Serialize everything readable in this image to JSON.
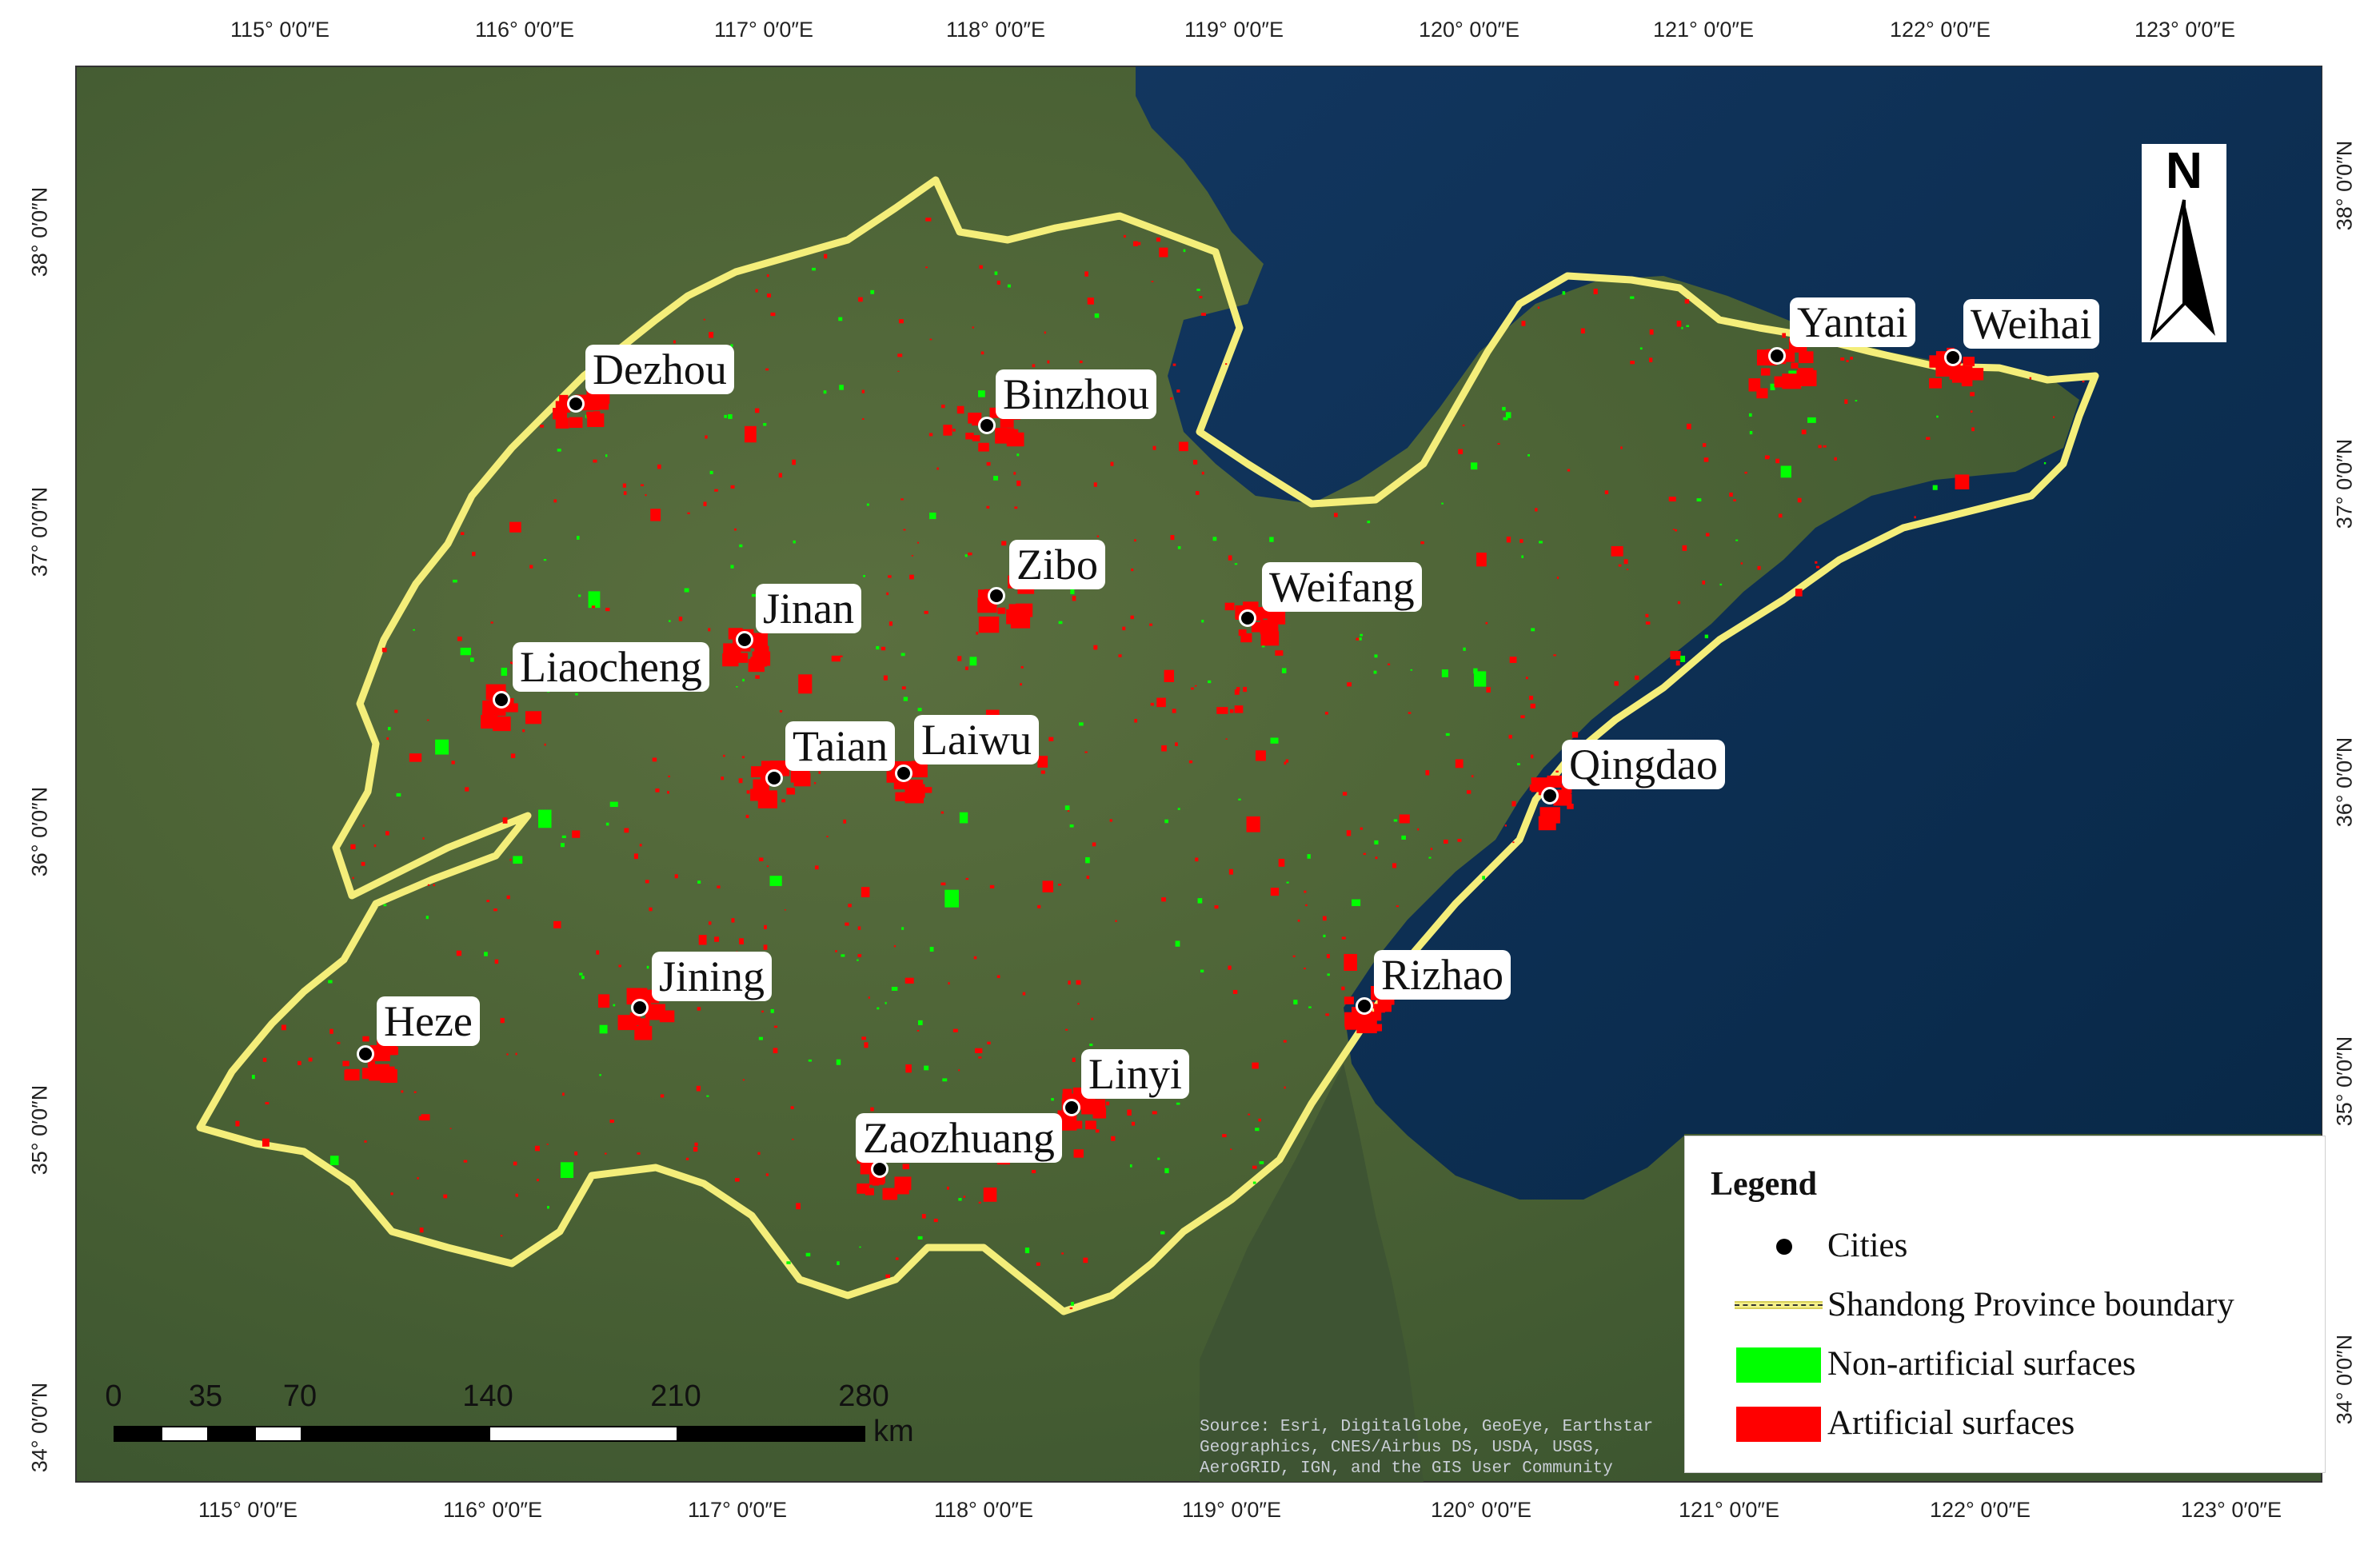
{
  "map": {
    "lon_labels": [
      "115° 0′0″E",
      "116° 0′0″E",
      "117° 0′0″E",
      "118° 0′0″E",
      "119° 0′0″E",
      "120° 0′0″E",
      "121° 0′0″E",
      "122° 0′0″E",
      "123° 0′0″E"
    ],
    "lat_labels": [
      "34° 0′0″N",
      "35° 0′0″N",
      "36° 0′0″N",
      "37° 0′0″N",
      "38° 0′0″N"
    ],
    "cities": [
      {
        "name": "Dezhou"
      },
      {
        "name": "Binzhou"
      },
      {
        "name": "Zibo"
      },
      {
        "name": "Jinan"
      },
      {
        "name": "Weifang"
      },
      {
        "name": "Liaocheng"
      },
      {
        "name": "Taian"
      },
      {
        "name": "Laiwu"
      },
      {
        "name": "Yantai"
      },
      {
        "name": "Weihai"
      },
      {
        "name": "Qingdao"
      },
      {
        "name": "Rizhao"
      },
      {
        "name": "Jining"
      },
      {
        "name": "Heze"
      },
      {
        "name": "Linyi"
      },
      {
        "name": "Zaozhuang"
      }
    ],
    "north_label": "N",
    "legend": {
      "title": "Legend",
      "items": [
        {
          "label": "Cities",
          "symbol": "black-dot-icon"
        },
        {
          "label": "Shandong Province boundary",
          "symbol": "yellow-line-icon"
        },
        {
          "label": "Non-artificial surfaces",
          "color": "#00ff00"
        },
        {
          "label": "Artificial surfaces",
          "color": "#ff0000"
        }
      ]
    },
    "scale_bar": {
      "ticks": [
        "0",
        "35",
        "70",
        "140",
        "210",
        "280"
      ],
      "unit": "km"
    },
    "attribution": "Source: Esri, DigitalGlobe, GeoEye, Earthstar Geographics, CNES/Airbus DS, USDA, USGS, AeroGRID, IGN, and the GIS User Community",
    "colors": {
      "sea": "#0b2f56",
      "land": "#4a6234",
      "boundary": "#f4ee7a",
      "artificial": "#ff0000",
      "non_artificial": "#00ff00"
    }
  }
}
